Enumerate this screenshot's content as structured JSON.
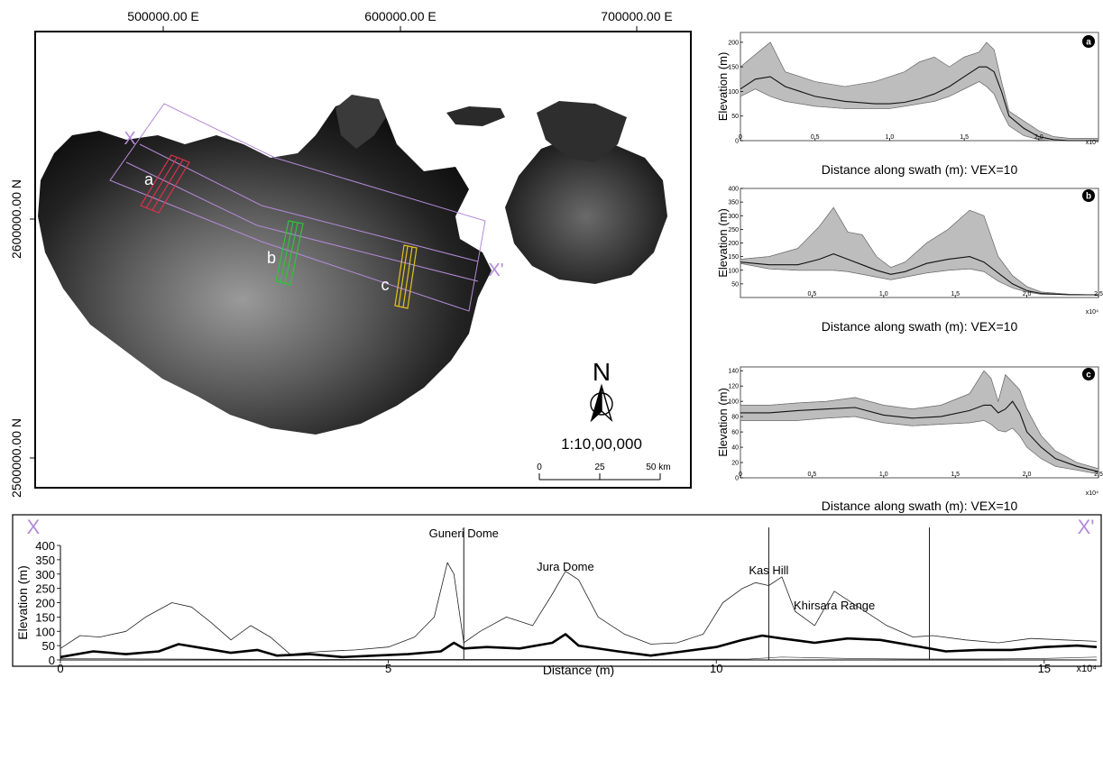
{
  "map": {
    "x_ticks": [
      "500000.00 E",
      "600000.00 E",
      "700000.00 E"
    ],
    "y_ticks": [
      "2600000.00 N",
      "2500000.00 N"
    ],
    "swath_labels": [
      "a",
      "b",
      "c"
    ],
    "section_start": "X",
    "section_end": "X'",
    "north_letter": "N",
    "scale_text": "1:10,00,000",
    "scalebar_labels": [
      "0",
      "25",
      "50 km"
    ],
    "colors": {
      "section_box": "#b48ad8",
      "swath_a": "#e0304a",
      "swath_b": "#2fc43a",
      "swath_c": "#e3c21a"
    }
  },
  "chart_data": [
    {
      "id": "a",
      "type": "area",
      "badge": "a",
      "ylabel": "Elevation (m)",
      "xlabel": "Distance along swath (m): VEX=10",
      "x_multiplier": "x10⁴",
      "xlim": [
        0,
        2.4
      ],
      "ylim": [
        0,
        220
      ],
      "xtick_labels": [
        "0",
        "0.5",
        "1.0",
        "1.5",
        "2.0"
      ],
      "xticks": [
        0,
        0.5,
        1.0,
        1.5,
        2.0
      ],
      "ytick_labels": [
        "0",
        "50",
        "100",
        "150",
        "200"
      ],
      "yticks": [
        0,
        50,
        100,
        150,
        200
      ],
      "x": [
        0,
        0.1,
        0.2,
        0.3,
        0.5,
        0.7,
        0.9,
        1.0,
        1.1,
        1.2,
        1.3,
        1.4,
        1.5,
        1.6,
        1.65,
        1.7,
        1.75,
        1.8,
        1.9,
        2.0,
        2.1,
        2.2,
        2.4
      ],
      "max": [
        150,
        175,
        200,
        140,
        120,
        110,
        120,
        130,
        140,
        160,
        170,
        150,
        170,
        180,
        200,
        185,
        120,
        60,
        40,
        20,
        8,
        5,
        5
      ],
      "mean": [
        105,
        125,
        130,
        110,
        90,
        80,
        75,
        75,
        78,
        85,
        95,
        110,
        130,
        150,
        150,
        140,
        100,
        50,
        25,
        8,
        2,
        0,
        0
      ],
      "min": [
        90,
        105,
        90,
        80,
        70,
        65,
        65,
        65,
        70,
        75,
        80,
        90,
        105,
        120,
        110,
        95,
        60,
        30,
        10,
        2,
        0,
        0,
        0
      ]
    },
    {
      "id": "b",
      "type": "area",
      "badge": "b",
      "ylabel": "Elevation (m)",
      "xlabel": "Distance along swath (m): VEX=10",
      "x_multiplier": "x10⁴",
      "xlim": [
        0,
        2.5
      ],
      "ylim": [
        0,
        400
      ],
      "xtick_labels": [
        "0.5",
        "1.0",
        "1.5",
        "2.0",
        "2.5"
      ],
      "xticks": [
        0.5,
        1.0,
        1.5,
        2.0,
        2.5
      ],
      "ytick_labels": [
        "50",
        "100",
        "150",
        "200",
        "250",
        "300",
        "350",
        "400"
      ],
      "yticks": [
        50,
        100,
        150,
        200,
        250,
        300,
        350,
        400
      ],
      "x": [
        0,
        0.2,
        0.4,
        0.55,
        0.65,
        0.75,
        0.85,
        0.95,
        1.05,
        1.15,
        1.3,
        1.45,
        1.6,
        1.7,
        1.8,
        1.9,
        2.0,
        2.1,
        2.3,
        2.5
      ],
      "max": [
        140,
        150,
        180,
        260,
        330,
        240,
        230,
        150,
        110,
        130,
        200,
        250,
        320,
        300,
        150,
        80,
        40,
        20,
        12,
        10
      ],
      "mean": [
        130,
        120,
        120,
        140,
        160,
        140,
        120,
        100,
        85,
        95,
        125,
        140,
        150,
        130,
        90,
        50,
        25,
        15,
        10,
        10
      ],
      "min": [
        125,
        105,
        100,
        100,
        100,
        95,
        85,
        75,
        65,
        75,
        90,
        100,
        105,
        95,
        60,
        35,
        20,
        12,
        10,
        10
      ]
    },
    {
      "id": "c",
      "type": "area",
      "badge": "c",
      "ylabel": "Elevation (m)",
      "xlabel": "Distance along swath (m): VEX=10",
      "x_multiplier": "x10⁴",
      "xlim": [
        0,
        2.5
      ],
      "ylim": [
        0,
        145
      ],
      "xtick_labels": [
        "0",
        "0.5",
        "1.0",
        "1.5",
        "2.0",
        "2.5"
      ],
      "xticks": [
        0,
        0.5,
        1.0,
        1.5,
        2.0,
        2.5
      ],
      "ytick_labels": [
        "0",
        "20",
        "40",
        "60",
        "80",
        "100",
        "120",
        "140"
      ],
      "yticks": [
        0,
        20,
        40,
        60,
        80,
        100,
        120,
        140
      ],
      "x": [
        0,
        0.2,
        0.4,
        0.6,
        0.8,
        1.0,
        1.2,
        1.4,
        1.6,
        1.7,
        1.75,
        1.8,
        1.85,
        1.9,
        1.95,
        2.0,
        2.1,
        2.2,
        2.35,
        2.5
      ],
      "max": [
        95,
        95,
        98,
        100,
        105,
        95,
        90,
        95,
        110,
        140,
        130,
        100,
        135,
        125,
        115,
        90,
        55,
        35,
        20,
        12
      ],
      "mean": [
        85,
        85,
        88,
        90,
        92,
        82,
        78,
        80,
        88,
        95,
        95,
        85,
        90,
        100,
        85,
        60,
        40,
        25,
        15,
        8
      ],
      "min": [
        75,
        75,
        75,
        78,
        80,
        72,
        68,
        70,
        72,
        75,
        70,
        62,
        60,
        65,
        55,
        40,
        25,
        15,
        10,
        5
      ]
    },
    {
      "id": "xx",
      "type": "line",
      "ylabel": "Elevation (m)",
      "xlabel": "Distance (m)",
      "x_multiplier": "x10⁴",
      "xlim": [
        0,
        15.8
      ],
      "ylim": [
        0,
        400
      ],
      "xtick_labels": [
        "0",
        "5",
        "10",
        "15"
      ],
      "xticks": [
        0,
        5,
        10,
        15
      ],
      "ytick_labels": [
        "0",
        "50",
        "100",
        "150",
        "200",
        "250",
        "300",
        "350",
        "400"
      ],
      "yticks": [
        0,
        50,
        100,
        150,
        200,
        250,
        300,
        350,
        400
      ],
      "start_label": "X",
      "end_label": "X'",
      "annotations": [
        {
          "text": "Guneri Dome",
          "x": 6.15
        },
        {
          "text": "Jura Dome",
          "x": 7.7
        },
        {
          "text": "Kas Hill",
          "x": 10.8
        },
        {
          "text": "Khirsara Range",
          "x": 11.8
        }
      ],
      "markers": [
        6.15,
        10.8,
        13.25
      ],
      "series": [
        {
          "role": "max",
          "x": [
            0,
            0.3,
            0.6,
            1.0,
            1.3,
            1.7,
            2.0,
            2.3,
            2.6,
            2.9,
            3.2,
            3.5,
            4.0,
            4.5,
            5.0,
            5.4,
            5.7,
            5.9,
            6.0,
            6.15,
            6.4,
            6.8,
            7.2,
            7.5,
            7.7,
            7.9,
            8.2,
            8.6,
            9.0,
            9.4,
            9.8,
            10.1,
            10.4,
            10.6,
            10.8,
            11.0,
            11.2,
            11.5,
            11.8,
            12.2,
            12.6,
            13.0,
            13.3,
            13.8,
            14.3,
            14.8,
            15.3,
            15.8
          ],
          "y": [
            40,
            85,
            80,
            100,
            150,
            200,
            185,
            130,
            70,
            120,
            80,
            20,
            30,
            35,
            45,
            80,
            150,
            340,
            300,
            60,
            100,
            150,
            120,
            230,
            310,
            280,
            150,
            90,
            55,
            60,
            90,
            200,
            250,
            270,
            260,
            290,
            170,
            120,
            240,
            180,
            120,
            80,
            85,
            70,
            60,
            75,
            70,
            65
          ]
        },
        {
          "role": "mean",
          "x": [
            0,
            0.5,
            1.0,
            1.5,
            1.8,
            2.2,
            2.6,
            3.0,
            3.3,
            3.8,
            4.3,
            4.8,
            5.3,
            5.8,
            6.0,
            6.15,
            6.5,
            7.0,
            7.5,
            7.7,
            7.9,
            8.5,
            9.0,
            9.5,
            10.0,
            10.4,
            10.7,
            11.0,
            11.5,
            12.0,
            12.5,
            13.0,
            13.5,
            14.0,
            14.5,
            15.0,
            15.5,
            15.8
          ],
          "y": [
            10,
            30,
            20,
            30,
            55,
            40,
            25,
            35,
            15,
            20,
            10,
            15,
            20,
            30,
            60,
            40,
            45,
            40,
            60,
            90,
            50,
            30,
            15,
            30,
            45,
            70,
            85,
            75,
            60,
            75,
            70,
            50,
            30,
            35,
            35,
            45,
            50,
            45
          ]
        },
        {
          "role": "min",
          "x": [
            0,
            3,
            6,
            9,
            10.5,
            11,
            12,
            13,
            14,
            15,
            15.8
          ],
          "y": [
            5,
            2,
            2,
            2,
            3,
            10,
            5,
            3,
            3,
            5,
            10
          ]
        }
      ]
    }
  ]
}
